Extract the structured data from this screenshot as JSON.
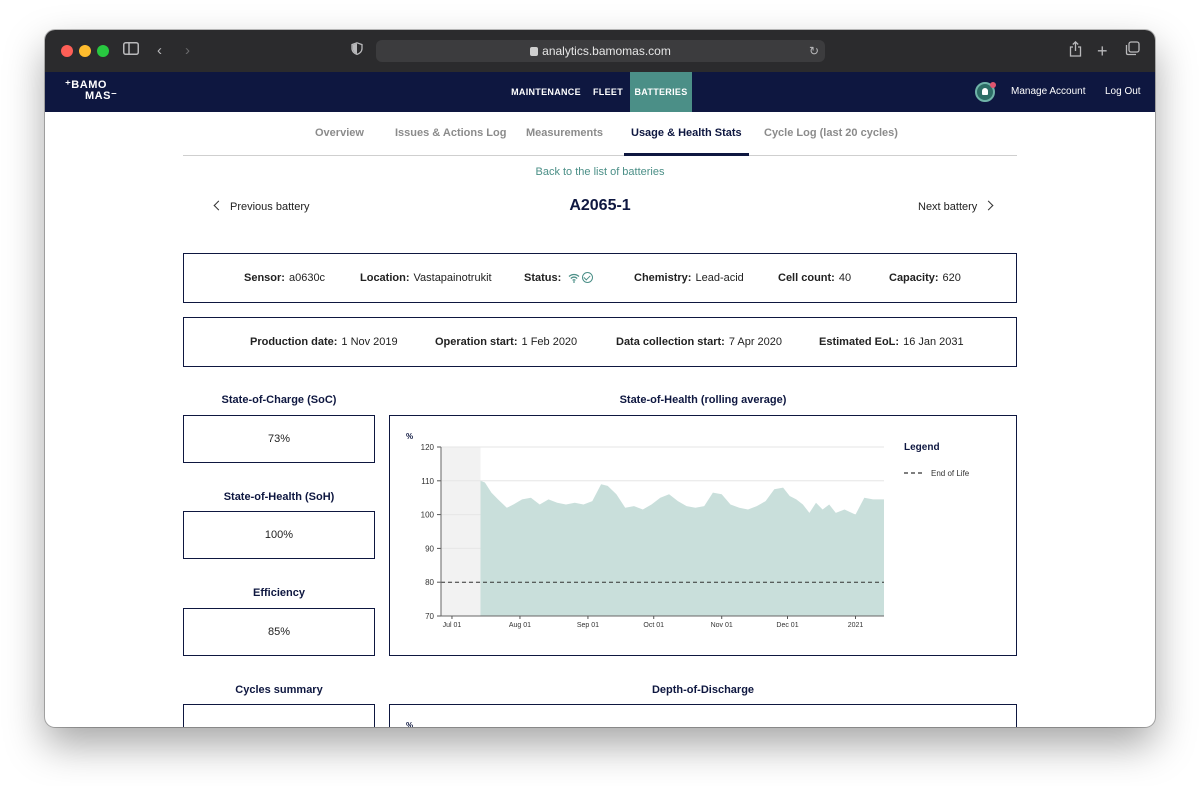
{
  "browser": {
    "url": "analytics.bamomas.com"
  },
  "nav": {
    "logo_line1": "⁺BAMO",
    "logo_line2": "MAS⁻",
    "links": [
      "MAINTENANCE",
      "FLEET",
      "BATTERIES"
    ],
    "active_link": "BATTERIES",
    "manage_account": "Manage Account",
    "logout": "Log Out"
  },
  "tabs": [
    "Overview",
    "Issues & Actions Log",
    "Measurements",
    "Usage & Health Stats",
    "Cycle Log (last 20 cycles)"
  ],
  "active_tab": "Usage & Health Stats",
  "back_link": "Back to the list of batteries",
  "pager": {
    "previous": "Previous battery",
    "next": "Next battery"
  },
  "battery_id": "A2065-1",
  "info_row1": [
    {
      "label": "Sensor:",
      "value": "a0630c"
    },
    {
      "label": "Location:",
      "value": "Vastapainotrukit"
    },
    {
      "label": "Status:",
      "value": ""
    },
    {
      "label": "Chemistry:",
      "value": "Lead-acid"
    },
    {
      "label": "Cell count:",
      "value": "40"
    },
    {
      "label": "Capacity:",
      "value": "620"
    }
  ],
  "info_row2": [
    {
      "label": "Production date:",
      "value": "1 Nov 2019"
    },
    {
      "label": "Operation start:",
      "value": "1 Feb 2020"
    },
    {
      "label": "Data collection start:",
      "value": "7 Apr 2020"
    },
    {
      "label": "Estimated EoL:",
      "value": "16 Jan 2031"
    }
  ],
  "stats": [
    {
      "title": "State-of-Charge (SoC)",
      "value": "73%"
    },
    {
      "title": "State-of-Health (SoH)",
      "value": "100%"
    },
    {
      "title": "Efficiency",
      "value": "85%"
    },
    {
      "title": "Cycles summary",
      "value": ""
    }
  ],
  "colors": {
    "navy": "#0e1740",
    "teal": "#4b8f87",
    "area_fill": "#c9dfdb"
  },
  "chart_data": {
    "type": "area",
    "title": "State-of-Health (rolling average)",
    "ylabel": "%",
    "ylim": [
      70,
      120
    ],
    "yticks": [
      70,
      80,
      90,
      100,
      110,
      120
    ],
    "xticks": [
      "Jul 01",
      "Aug 01",
      "Sep 01",
      "Oct 01",
      "Nov 01",
      "Dec 01",
      "2021"
    ],
    "x_range": [
      "2020-06-26",
      "2021-01-14"
    ],
    "no_data_until": "2020-07-14",
    "grid": true,
    "legend": {
      "title": "Legend",
      "placement": "right",
      "entries": [
        "End of Life"
      ]
    },
    "reference_line": {
      "name": "End of Life",
      "value": 80,
      "style": "dashed"
    },
    "series": [
      {
        "name": "",
        "x": [
          "2020-07-14",
          "2020-07-16",
          "2020-07-19",
          "2020-07-22",
          "2020-07-26",
          "2020-07-29",
          "2020-08-02",
          "2020-08-06",
          "2020-08-10",
          "2020-08-14",
          "2020-08-18",
          "2020-08-22",
          "2020-08-26",
          "2020-08-30",
          "2020-09-03",
          "2020-09-07",
          "2020-09-10",
          "2020-09-14",
          "2020-09-18",
          "2020-09-22",
          "2020-09-26",
          "2020-09-30",
          "2020-10-04",
          "2020-10-08",
          "2020-10-12",
          "2020-10-16",
          "2020-10-20",
          "2020-10-24",
          "2020-10-28",
          "2020-11-01",
          "2020-11-05",
          "2020-11-09",
          "2020-11-13",
          "2020-11-17",
          "2020-11-21",
          "2020-11-25",
          "2020-11-29",
          "2020-12-02",
          "2020-12-05",
          "2020-12-08",
          "2020-12-11",
          "2020-12-14",
          "2020-12-17",
          "2020-12-20",
          "2020-12-23",
          "2020-12-27",
          "2021-01-01",
          "2021-01-05",
          "2021-01-09",
          "2021-01-14"
        ],
        "values": [
          110,
          109.5,
          106.5,
          104.5,
          102,
          103,
          104.5,
          105,
          103,
          104.5,
          103.5,
          103,
          103.5,
          103,
          104,
          109,
          108.5,
          106,
          102,
          102.5,
          101.5,
          103,
          105,
          106,
          104,
          102.5,
          102,
          102.5,
          106.5,
          106,
          103,
          102,
          101.5,
          102.5,
          104,
          107.5,
          108,
          105.5,
          104.5,
          103,
          100.5,
          103.5,
          101.5,
          103,
          100.5,
          101.5,
          100,
          105,
          104.5,
          104.5
        ]
      }
    ]
  },
  "dod_chart": {
    "title": "Depth-of-Discharge",
    "ylabel": "%"
  }
}
